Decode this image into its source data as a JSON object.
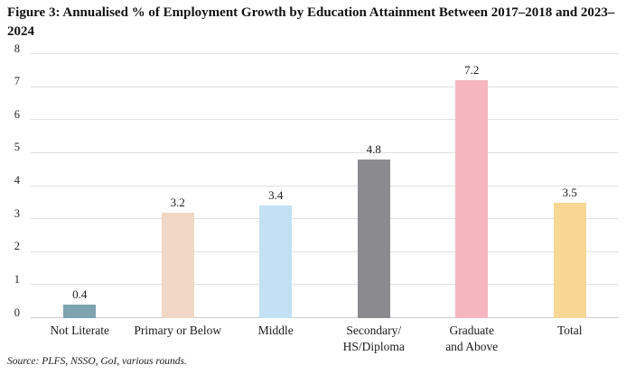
{
  "figure": {
    "title": "Figure 3: Annualised % of Employment Growth by Education Attainment Between 2017–2018 and 2023–2024",
    "source": "Source: PLFS, NSSO, GoI, various rounds."
  },
  "chart_data": {
    "type": "bar",
    "title": "Figure 3: Annualised % of Employment Growth by Education Attainment Between 2017–2018 and 2023–2024",
    "categories": [
      "Not Literate",
      "Primary or Below",
      "Middle",
      "Secondary/\nHS/Diploma",
      "Graduate\nand Above",
      "Total"
    ],
    "values": [
      0.4,
      3.2,
      3.4,
      4.8,
      7.2,
      3.5
    ],
    "value_labels": [
      "0.4",
      "3.2",
      "3.4",
      "4.8",
      "7.2",
      "3.5"
    ],
    "bar_colors": [
      "#7ea3b1",
      "#f1d7c6",
      "#c2e2f3",
      "#8b8b8f",
      "#f5b6c0",
      "#f8d795"
    ],
    "xlabel": "",
    "ylabel": "",
    "ylim": [
      0,
      8
    ],
    "yticks": [
      0,
      1,
      2,
      3,
      4,
      5,
      6,
      7,
      8
    ],
    "grid": true,
    "legend": false,
    "gridline_color": "#e0e0e0",
    "background_color": "#ffffff"
  }
}
